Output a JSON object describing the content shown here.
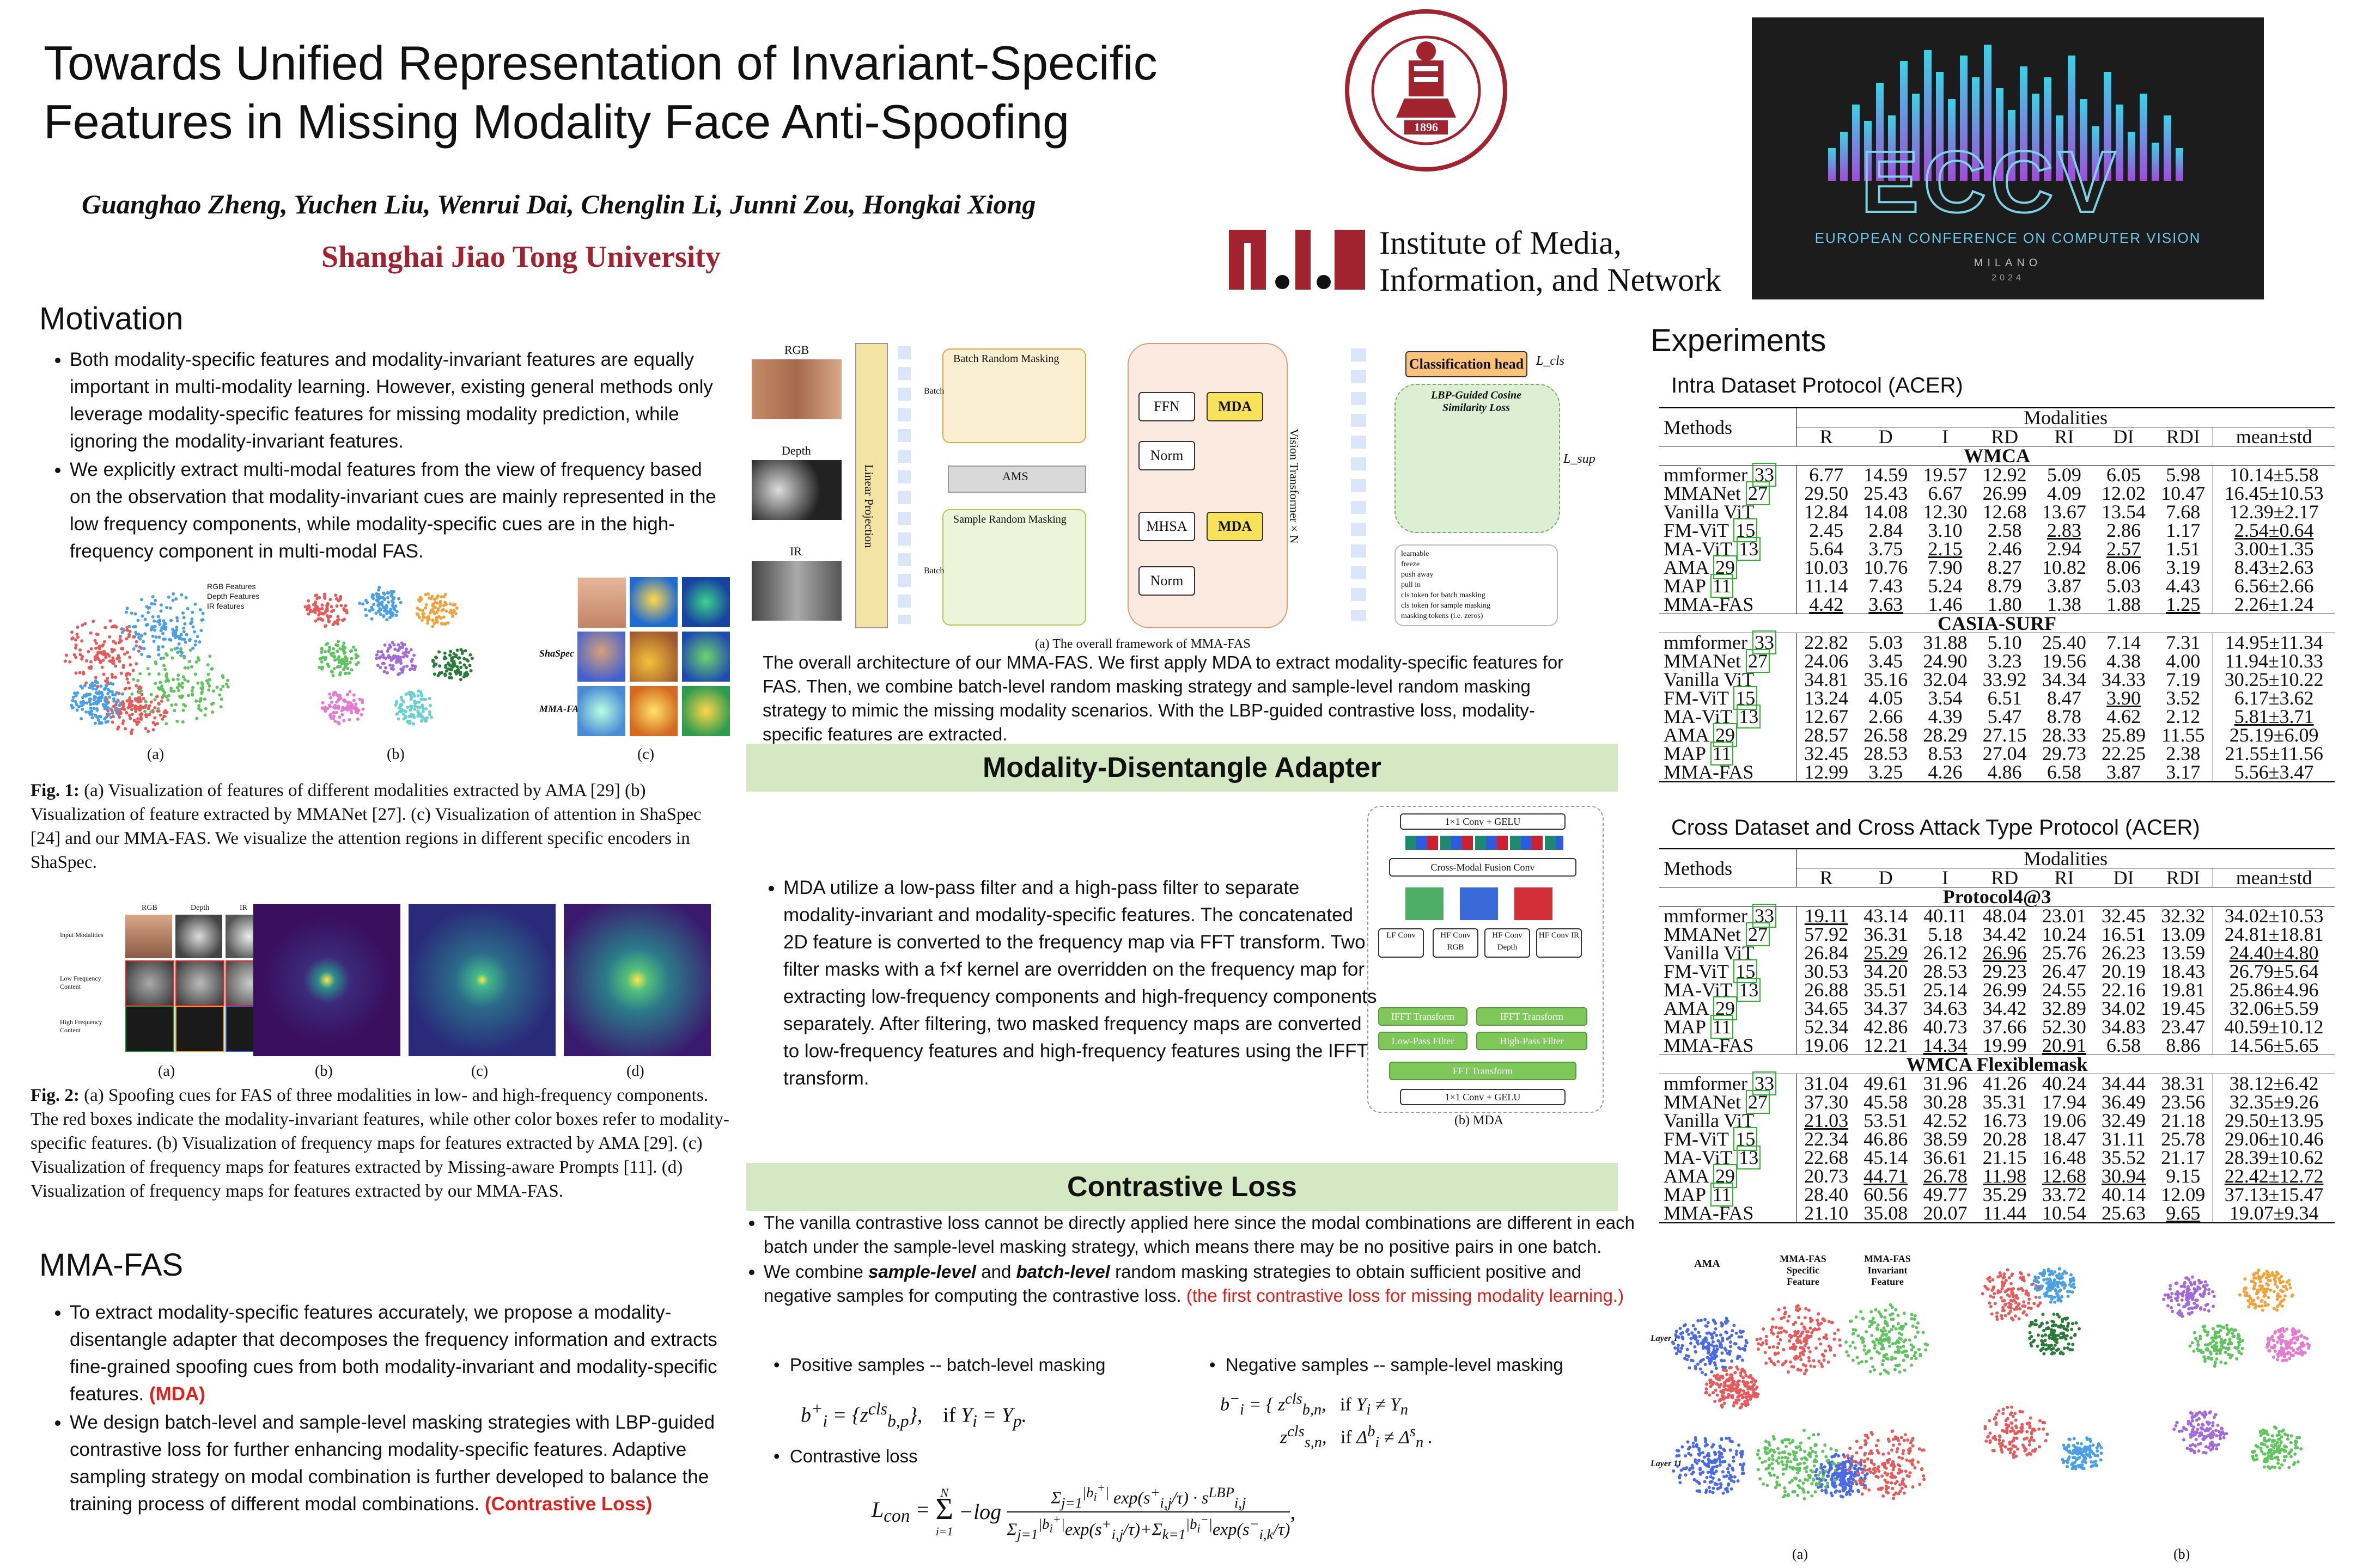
{
  "header": {
    "title_line1": "Towards Unified Representation of Invariant-Specific",
    "title_line2": "Features in Missing Modality Face Anti-Spoofing",
    "authors": "Guanghao Zheng, Yuchen Liu, Wenrui Dai,  Chenglin Li, Junni Zou, Hongkai Xiong",
    "affiliation": "Shanghai Jiao Tong University",
    "sjtu_year": "1896",
    "lab_line1": "Institute of Media,",
    "lab_line2": "Information, and Network",
    "eccv_name": "EUROPEAN CONFERENCE ON COMPUTER VISION",
    "eccv_city": "MILANO",
    "eccv_year": "2024"
  },
  "motivation": {
    "heading": "Motivation",
    "bullet1": "Both modality-specific features and modality-invariant features are equally important in multi-modality learning. However, existing general methods only leverage modality-specific features for missing modality prediction, while ignoring the modality-invariant features.",
    "bullet2": "We explicitly extract multi-modal features from the view of frequency based on the observation that modality-invariant cues are mainly represented in the low    frequency components, while modality-specific cues are in the high-frequency component in multi-modal FAS.",
    "fig1_labels": [
      "(a)",
      "(b)",
      "(c)"
    ],
    "fig1_legend": [
      "RGB Features",
      "Depth Features",
      "IR features"
    ],
    "fig1_row_labels": [
      "ShaSpec",
      "MMA-FAS"
    ],
    "fig1_caption_head": "Fig. 1:",
    "fig1_caption": " (a) Visualization of features of different modalities extracted by AMA [29] (b) Visualization of feature extracted by MMANet [27]. (c) Visualization of attention in ShaSpec [24] and our MMA-FAS. We visualize the attention regions in different specific encoders in ShaSpec.",
    "fig2_labels": [
      "(a)",
      "(b)",
      "(c)",
      "(d)"
    ],
    "fig2_col_labels": [
      "RGB",
      "Depth",
      "IR"
    ],
    "fig2_row_labels": [
      "Input Modalities",
      "Low Frequency Content",
      "High Frequency Content"
    ],
    "fig2_caption_head": "Fig. 2:",
    "fig2_caption": " (a) Spoofing cues for FAS of three modalities in low- and high-frequency components. The red boxes indicate the modality-invariant features, while other color boxes refer to modality-specific features. (b) Visualization of frequency maps for features extracted by AMA [29]. (c) Visualization of frequency maps for features extracted by Missing-aware Prompts [11]. (d) Visualization of frequency maps for features extracted by our MMA-FAS."
  },
  "mmafas": {
    "heading": "MMA-FAS",
    "bullet1": "To extract modality-specific features accurately, we propose a modality-disentangle adapter that decomposes the frequency information and extracts fine-grained spoofing cues from both modality-invariant and modality-specific features.",
    "bullet1_tag": "(MDA)",
    "bullet2": "We design batch-level and sample-level masking strategies with LBP-guided contrastive loss for further enhancing modality-specific features. Adaptive sampling strategy on modal combination is further developed to balance the training process of different modal combinations.",
    "bullet2_tag": "(Contrastive Loss)"
  },
  "framework": {
    "labels": [
      "RGB",
      "Depth",
      "IR"
    ],
    "linear_projection": "Linear Projection",
    "batch_masking": "Batch Random Masking",
    "sample_masking": "Sample Random Masking",
    "ams": "AMS",
    "batch": "Batch",
    "vit": "Vision Transformer × N",
    "ffn": "FFN",
    "norm": "Norm",
    "mhsa": "MHSA",
    "mda": "MDA",
    "cls_head": "Classification head",
    "l_cls": "L_cls",
    "lbp_title": "LBP-Guided Cosine Similarity Loss",
    "l_sup": "L_sup",
    "legend": [
      "learnable",
      "freeze",
      "push away",
      "pull in",
      "cls token for batch masking",
      "cls token for sample masking",
      "masking tokens (i.e. zeros)"
    ],
    "caption": "(a) The overall framework of MMA-FAS",
    "description": "The overall architecture of our MMA-FAS. We first apply MDA to extract modality-specific features for FAS. Then, we combine batch-level random masking strategy and sample-level random masking strategy to mimic the missing modality scenarios. With the LBP-guided contrastive loss, modality-specific features are extracted."
  },
  "mda": {
    "heading": "Modality-Disentangle Adapter",
    "text": "MDA utilize a low-pass filter and a high-pass filter to separate modality-invariant and modality-specific features. The concatenated 2D feature is converted to the frequency map via FFT transform. Two filter masks with a f×f kernel are overridden on the frequency map for extracting low-frequency components and high-frequency components separately.  After filtering, two masked frequency maps are converted to low-frequency features and high-frequency features using the IFFT transform.",
    "diagram_top": "1×1 Conv + GELU",
    "diagram_fusion": "Cross-Modal Fusion Conv",
    "diagram_convs": [
      "LF Conv",
      "HF Conv RGB",
      "HF Conv Depth",
      "HF Conv IR"
    ],
    "diagram_ifft": "IFFT Transform",
    "diagram_lpf": "Low-Pass Filter",
    "diagram_hpf": "High-Pass Filter",
    "diagram_fft": "FFT Transform",
    "diagram_bottom": "1×1 Conv + GELU",
    "caption": "(b) MDA"
  },
  "contrastive": {
    "heading": "Contrastive Loss",
    "bullet1": "The vanilla contrastive loss cannot be directly applied here since the modal combinations are different in each batch under the sample-level masking strategy, which means there may be no positive pairs in one batch.",
    "bullet2_a": "We combine ",
    "bullet2_b": "sample-level",
    "bullet2_c": " and ",
    "bullet2_d": "batch-level",
    "bullet2_e": " random masking strategies to obtain sufficient positive and negative samples for computing the contrastive loss. ",
    "bullet2_red": "(the first contrastive loss for missing modality learning.)",
    "pos_label": "Positive samples -- batch-level masking",
    "neg_label": "Negative samples -- sample-level masking",
    "loss_label": "Contrastive loss"
  },
  "experiments": {
    "heading": "Experiments",
    "table1_title": "Intra Dataset Protocol (ACER)",
    "table2_title": "Cross Dataset and Cross Attack Type Protocol (ACER)",
    "methods_label": "Methods",
    "modalities_label": "Modalities",
    "columns": [
      "R",
      "D",
      "I",
      "RD",
      "RI",
      "DI",
      "RDI",
      "mean±std"
    ],
    "table1": [
      {
        "group": "WMCA",
        "rows": [
          [
            "mmformer [33]",
            "6.77",
            "14.59",
            "19.57",
            "12.92",
            "5.09",
            "6.05",
            "5.98",
            "10.14±5.58"
          ],
          [
            "MMANet [27]",
            "29.50",
            "25.43",
            "6.67",
            "26.99",
            "4.09",
            "12.02",
            "10.47",
            "16.45±10.53"
          ],
          [
            "Vanilla ViT",
            "12.84",
            "14.08",
            "12.30",
            "12.68",
            "13.67",
            "13.54",
            "7.68",
            "12.39±2.17"
          ],
          [
            "FM-ViT [15]",
            "2.45",
            "2.84",
            "3.10",
            "2.58",
            "2.83",
            "2.86",
            "1.17",
            "2.54±0.64"
          ],
          [
            "MA-ViT [13]",
            "5.64",
            "3.75",
            "2.15",
            "2.46",
            "2.94",
            "2.57",
            "1.51",
            "3.00±1.35"
          ],
          [
            "AMA [29]",
            "10.03",
            "10.76",
            "7.90",
            "8.27",
            "10.82",
            "8.06",
            "3.19",
            "8.43±2.63"
          ],
          [
            "MAP [11]",
            "11.14",
            "7.43",
            "5.24",
            "8.79",
            "3.87",
            "5.03",
            "4.43",
            "6.56±2.66"
          ],
          [
            "MMA-FAS",
            "4.42",
            "3.63",
            "1.46",
            "1.80",
            "1.38",
            "1.88",
            "1.25",
            "2.26±1.24"
          ]
        ]
      },
      {
        "group": "CASIA-SURF",
        "rows": [
          [
            "mmformer [33]",
            "22.82",
            "5.03",
            "31.88",
            "5.10",
            "25.40",
            "7.14",
            "7.31",
            "14.95±11.34"
          ],
          [
            "MMANet [27]",
            "24.06",
            "3.45",
            "24.90",
            "3.23",
            "19.56",
            "4.38",
            "4.00",
            "11.94±10.33"
          ],
          [
            "Vanilla ViT",
            "34.81",
            "35.16",
            "32.04",
            "33.92",
            "34.34",
            "34.33",
            "7.19",
            "30.25±10.22"
          ],
          [
            "FM-ViT [15]",
            "13.24",
            "4.05",
            "3.54",
            "6.51",
            "8.47",
            "3.90",
            "3.52",
            "6.17±3.62"
          ],
          [
            "MA-ViT [13]",
            "12.67",
            "2.66",
            "4.39",
            "5.47",
            "8.78",
            "4.62",
            "2.12",
            "5.81±3.71"
          ],
          [
            "AMA [29]",
            "28.57",
            "26.58",
            "28.29",
            "27.15",
            "28.33",
            "25.89",
            "11.55",
            "25.19±6.09"
          ],
          [
            "MAP [11]",
            "32.45",
            "28.53",
            "8.53",
            "27.04",
            "29.73",
            "22.25",
            "2.38",
            "21.55±11.56"
          ],
          [
            "MMA-FAS",
            "12.99",
            "3.25",
            "4.26",
            "4.86",
            "6.58",
            "3.87",
            "3.17",
            "5.56±3.47"
          ]
        ]
      }
    ],
    "table2": [
      {
        "group": "Protocol4@3",
        "rows": [
          [
            "mmformer [33]",
            "19.11",
            "43.14",
            "40.11",
            "48.04",
            "23.01",
            "32.45",
            "32.32",
            "34.02±10.53"
          ],
          [
            "MMANet [27]",
            "57.92",
            "36.31",
            "5.18",
            "34.42",
            "10.24",
            "16.51",
            "13.09",
            "24.81±18.81"
          ],
          [
            "Vanilla ViT",
            "26.84",
            "25.29",
            "26.12",
            "26.96",
            "25.76",
            "26.23",
            "13.59",
            "24.40±4.80"
          ],
          [
            "FM-ViT [15]",
            "30.53",
            "34.20",
            "28.53",
            "29.23",
            "26.47",
            "20.19",
            "18.43",
            "26.79±5.64"
          ],
          [
            "MA-ViT [13]",
            "26.88",
            "35.51",
            "25.14",
            "26.99",
            "24.55",
            "22.16",
            "19.81",
            "25.86±4.96"
          ],
          [
            "AMA [29]",
            "34.65",
            "34.37",
            "34.63",
            "34.42",
            "32.89",
            "34.02",
            "19.45",
            "32.06±5.59"
          ],
          [
            "MAP [11]",
            "52.34",
            "42.86",
            "40.73",
            "37.66",
            "52.30",
            "34.83",
            "23.47",
            "40.59±10.12"
          ],
          [
            "MMA-FAS",
            "19.06",
            "12.21",
            "14.34",
            "19.99",
            "20.91",
            "6.58",
            "8.86",
            "14.56±5.65"
          ]
        ]
      },
      {
        "group": "WMCA Flexiblemask",
        "rows": [
          [
            "mmformer [33]",
            "31.04",
            "49.61",
            "31.96",
            "41.26",
            "40.24",
            "34.44",
            "38.31",
            "38.12±6.42"
          ],
          [
            "MMANet [27]",
            "37.30",
            "45.58",
            "30.28",
            "35.31",
            "17.94",
            "36.49",
            "23.56",
            "32.35±9.26"
          ],
          [
            "Vanilla ViT",
            "21.03",
            "53.51",
            "42.52",
            "16.73",
            "19.06",
            "32.49",
            "21.18",
            "29.50±13.95"
          ],
          [
            "FM-ViT [15]",
            "22.34",
            "46.86",
            "38.59",
            "20.28",
            "18.47",
            "31.11",
            "25.78",
            "29.06±10.46"
          ],
          [
            "MA-ViT [13]",
            "22.68",
            "45.14",
            "36.61",
            "21.15",
            "16.48",
            "35.52",
            "21.17",
            "28.39±10.62"
          ],
          [
            "AMA [29]",
            "20.73",
            "44.71",
            "26.78",
            "11.98",
            "12.68",
            "30.94",
            "9.15",
            "22.42±12.72"
          ],
          [
            "MAP [11]",
            "28.40",
            "60.56",
            "49.77",
            "35.29",
            "33.72",
            "40.14",
            "12.09",
            "37.13±15.47"
          ],
          [
            "MMA-FAS",
            "21.10",
            "35.08",
            "20.07",
            "11.44",
            "10.54",
            "25.63",
            "9.65",
            "19.07±9.34"
          ]
        ]
      }
    ],
    "viz_col_titles": [
      "AMA",
      "MMA-FAS Specific Feature",
      "MMA-FAS Invariant Feature"
    ],
    "viz_row_labels": [
      "Layer 1",
      "Layer 11"
    ],
    "viz_sub_labels": [
      "(a)",
      "(b)"
    ]
  }
}
